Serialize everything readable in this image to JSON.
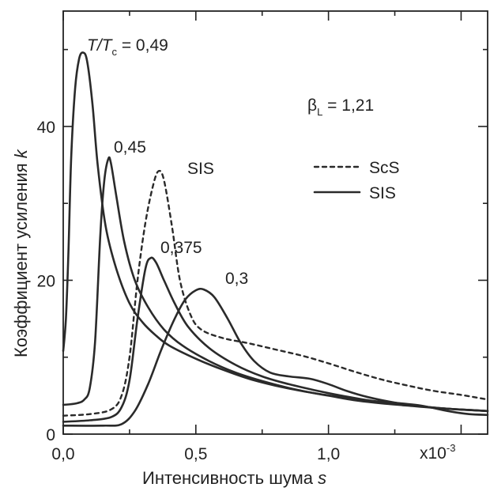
{
  "chart_data": {
    "type": "line",
    "xlabel": {
      "text": "Интенсивность шума ",
      "var": "s"
    },
    "ylabel": {
      "text": "Коэффициент усиления ",
      "var": "k"
    },
    "x_multiplier": "x10",
    "x_multiplier_exp": "-3",
    "xlim": [
      0,
      1.6
    ],
    "ylim": [
      0,
      55
    ],
    "x_ticks": [
      0,
      0.5,
      1.0,
      1.5
    ],
    "x_tick_labels": [
      "0,0",
      "0,5",
      "1,0",
      ""
    ],
    "y_ticks": [
      0,
      20,
      40
    ],
    "y_tick_labels": [
      "0",
      "20",
      "40"
    ],
    "annotations": {
      "temp_label": {
        "prefix": "T/T",
        "sub": "c",
        "value": " = 0,49"
      },
      "beta_label": {
        "prefix": "β",
        "sub": "L",
        "value": " = 1,21"
      },
      "label_045": "0,45",
      "label_sis_peak": "SIS",
      "label_0375": "0,375",
      "label_03": "0,3"
    },
    "legend": {
      "position": "top-right",
      "items": [
        {
          "label": "ScS",
          "style": "dashed"
        },
        {
          "label": "SIS",
          "style": "solid"
        }
      ]
    },
    "series": [
      {
        "id": "t049",
        "style": "solid",
        "points": [
          [
            0.0,
            10.8
          ],
          [
            0.01,
            15
          ],
          [
            0.02,
            24
          ],
          [
            0.03,
            36
          ],
          [
            0.045,
            45
          ],
          [
            0.06,
            48.8
          ],
          [
            0.075,
            49.6
          ],
          [
            0.09,
            48.5
          ],
          [
            0.11,
            43
          ],
          [
            0.13,
            35
          ],
          [
            0.16,
            27
          ],
          [
            0.2,
            21.5
          ],
          [
            0.25,
            17
          ],
          [
            0.3,
            14.5
          ],
          [
            0.35,
            12.8
          ],
          [
            0.4,
            11.5
          ],
          [
            0.5,
            9.8
          ],
          [
            0.6,
            8.4
          ],
          [
            0.7,
            7.2
          ],
          [
            0.8,
            6.3
          ],
          [
            0.9,
            5.6
          ],
          [
            1.0,
            5.0
          ],
          [
            1.1,
            4.4
          ],
          [
            1.2,
            4.0
          ],
          [
            1.3,
            3.7
          ],
          [
            1.4,
            3.4
          ],
          [
            1.5,
            3.2
          ],
          [
            1.6,
            3.0
          ]
        ]
      },
      {
        "id": "t045",
        "style": "solid",
        "points": [
          [
            0.0,
            3.8
          ],
          [
            0.05,
            4.0
          ],
          [
            0.08,
            4.5
          ],
          [
            0.1,
            6
          ],
          [
            0.12,
            12
          ],
          [
            0.14,
            26
          ],
          [
            0.155,
            33
          ],
          [
            0.17,
            35.8
          ],
          [
            0.18,
            35.2
          ],
          [
            0.2,
            31
          ],
          [
            0.23,
            25
          ],
          [
            0.27,
            20
          ],
          [
            0.32,
            16.5
          ],
          [
            0.38,
            13.6
          ],
          [
            0.45,
            11.5
          ],
          [
            0.55,
            9.5
          ],
          [
            0.65,
            8.0
          ],
          [
            0.75,
            6.9
          ],
          [
            0.85,
            6.0
          ],
          [
            0.95,
            5.3
          ],
          [
            1.05,
            4.8
          ],
          [
            1.15,
            4.3
          ],
          [
            1.25,
            3.9
          ],
          [
            1.35,
            3.6
          ],
          [
            1.45,
            3.3
          ],
          [
            1.6,
            3.0
          ]
        ]
      },
      {
        "id": "scs",
        "style": "dashed",
        "points": [
          [
            0.0,
            2.4
          ],
          [
            0.1,
            2.6
          ],
          [
            0.18,
            3.2
          ],
          [
            0.22,
            5
          ],
          [
            0.25,
            10
          ],
          [
            0.28,
            20
          ],
          [
            0.31,
            27.5
          ],
          [
            0.34,
            32.5
          ],
          [
            0.36,
            34.2
          ],
          [
            0.38,
            33
          ],
          [
            0.41,
            27
          ],
          [
            0.44,
            20
          ],
          [
            0.48,
            15.5
          ],
          [
            0.52,
            13.6
          ],
          [
            0.6,
            12.5
          ],
          [
            0.7,
            11.8
          ],
          [
            0.8,
            11.0
          ],
          [
            0.9,
            10.2
          ],
          [
            1.0,
            9.2
          ],
          [
            1.1,
            8.1
          ],
          [
            1.2,
            7.1
          ],
          [
            1.3,
            6.3
          ],
          [
            1.4,
            5.6
          ],
          [
            1.5,
            5.1
          ],
          [
            1.6,
            4.5
          ]
        ]
      },
      {
        "id": "t0375",
        "style": "solid",
        "points": [
          [
            0.0,
            1.6
          ],
          [
            0.1,
            1.8
          ],
          [
            0.18,
            2.2
          ],
          [
            0.22,
            3.5
          ],
          [
            0.25,
            7
          ],
          [
            0.28,
            15
          ],
          [
            0.31,
            21.5
          ],
          [
            0.33,
            22.9
          ],
          [
            0.35,
            22.3
          ],
          [
            0.38,
            20
          ],
          [
            0.42,
            17
          ],
          [
            0.47,
            14
          ],
          [
            0.55,
            11.2
          ],
          [
            0.65,
            9.0
          ],
          [
            0.75,
            7.5
          ],
          [
            0.85,
            6.5
          ],
          [
            0.95,
            5.7
          ],
          [
            1.05,
            5.0
          ],
          [
            1.15,
            4.4
          ],
          [
            1.25,
            4.0
          ],
          [
            1.35,
            3.6
          ],
          [
            1.45,
            3.3
          ],
          [
            1.55,
            3.1
          ],
          [
            1.6,
            3.0
          ]
        ]
      },
      {
        "id": "t03",
        "style": "solid",
        "points": [
          [
            0.0,
            1.1
          ],
          [
            0.15,
            1.1
          ],
          [
            0.22,
            1.3
          ],
          [
            0.27,
            3
          ],
          [
            0.32,
            6.5
          ],
          [
            0.37,
            11
          ],
          [
            0.42,
            15
          ],
          [
            0.46,
            17.5
          ],
          [
            0.5,
            18.7
          ],
          [
            0.53,
            18.8
          ],
          [
            0.57,
            17.8
          ],
          [
            0.62,
            15
          ],
          [
            0.67,
            11.8
          ],
          [
            0.72,
            9.5
          ],
          [
            0.78,
            8.0
          ],
          [
            0.85,
            7.5
          ],
          [
            0.93,
            7.2
          ],
          [
            1.0,
            6.5
          ],
          [
            1.07,
            5.6
          ],
          [
            1.15,
            4.8
          ],
          [
            1.25,
            4.1
          ],
          [
            1.35,
            3.7
          ],
          [
            1.45,
            3.0
          ],
          [
            1.53,
            2.6
          ],
          [
            1.6,
            2.5
          ]
        ]
      }
    ]
  }
}
